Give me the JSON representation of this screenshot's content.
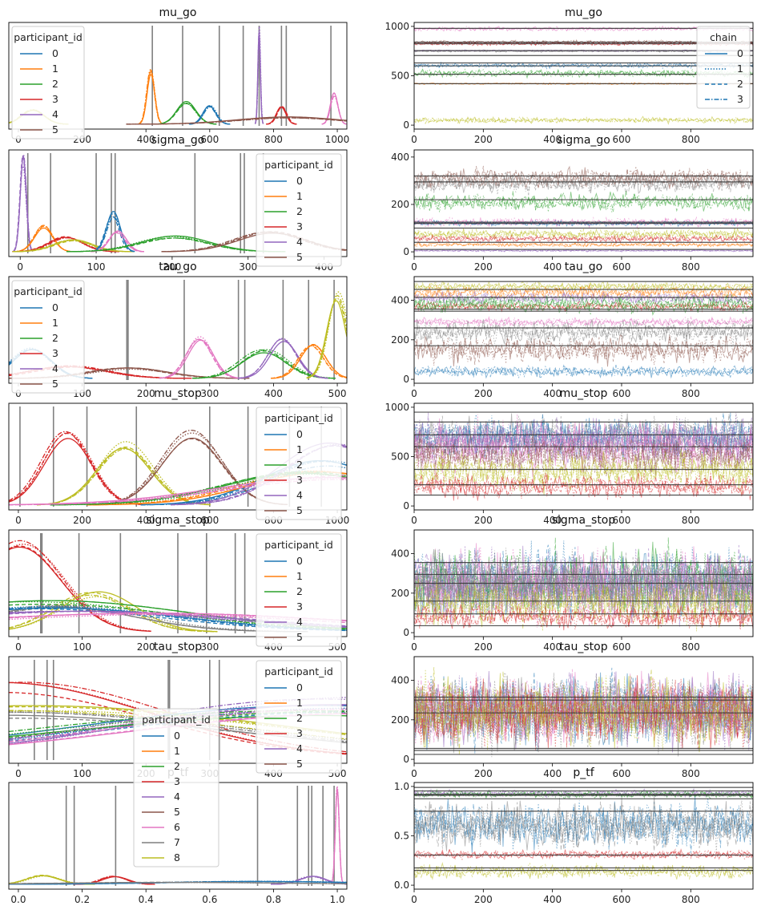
{
  "colors": {
    "participant": [
      "#1f77b4",
      "#ff7f0e",
      "#2ca02c",
      "#d62728",
      "#9467bd",
      "#8c564b",
      "#e377c2",
      "#7f7f7f",
      "#bcbd22"
    ],
    "vline": "#808080",
    "legend_border": "#cccccc"
  },
  "legend_participant": {
    "title": "participant_id",
    "labels": [
      "0",
      "1",
      "2",
      "3",
      "4",
      "5"
    ]
  },
  "legend_participant_full": {
    "title": "participant_id",
    "labels": [
      "0",
      "1",
      "2",
      "3",
      "4",
      "5",
      "6",
      "7",
      "8"
    ]
  },
  "legend_chain": {
    "title": "chain",
    "labels": [
      "0",
      "1",
      "2",
      "3"
    ],
    "line_styles": [
      "solid",
      "dotted",
      "dashed",
      "dashdot"
    ]
  },
  "chart_data": [
    {
      "type": "line",
      "kind": "density",
      "title": "mu_go",
      "xticks": [
        "0",
        "200",
        "400",
        "600",
        "800",
        "1000"
      ],
      "xlim": [
        -30,
        1030
      ],
      "legend": "top-left",
      "vlines": [
        420,
        515,
        630,
        705,
        755,
        825,
        840,
        980
      ],
      "series": [
        {
          "participant": 1,
          "center": 415,
          "width": 12,
          "height": 0.52
        },
        {
          "participant": 2,
          "center": 525,
          "width": 30,
          "height": 0.22
        },
        {
          "participant": 0,
          "center": 600,
          "width": 20,
          "height": 0.18
        },
        {
          "participant": 4,
          "center": 755,
          "width": 4,
          "height": 0.94
        },
        {
          "participant": 3,
          "center": 825,
          "width": 15,
          "height": 0.18
        },
        {
          "participant": 6,
          "center": 990,
          "width": 12,
          "height": 0.3
        },
        {
          "participant": 8,
          "center": 45,
          "width": 35,
          "height": 0.15
        },
        {
          "participant": 5,
          "center": 850,
          "width": 160,
          "height": 0.07
        }
      ]
    },
    {
      "type": "line",
      "kind": "trace",
      "title": "mu_go",
      "xticks": [
        "0",
        "200",
        "400",
        "600",
        "800"
      ],
      "yticks": [
        0,
        500,
        1000
      ],
      "ylim": [
        -40,
        1040
      ],
      "legend": "top-right",
      "hlines": [
        420,
        515,
        600,
        630,
        705,
        755,
        825,
        840,
        980
      ],
      "bands": [
        {
          "participant": 6,
          "center": 975,
          "spread": 30
        },
        {
          "participant": 5,
          "center": 840,
          "spread": 25
        },
        {
          "participant": 3,
          "center": 825,
          "spread": 25
        },
        {
          "participant": 7,
          "center": 750,
          "spread": 15
        },
        {
          "participant": 4,
          "center": 755,
          "spread": 10
        },
        {
          "participant": 0,
          "center": 605,
          "spread": 35
        },
        {
          "participant": 2,
          "center": 525,
          "spread": 50
        },
        {
          "participant": 1,
          "center": 420,
          "spread": 12
        },
        {
          "participant": 8,
          "center": 50,
          "spread": 40
        }
      ]
    },
    {
      "type": "line",
      "kind": "density",
      "title": "sigma_go",
      "xticks": [
        "0",
        "100",
        "200",
        "300",
        "400"
      ],
      "xlim": [
        -15,
        430
      ],
      "legend": "top-right",
      "vlines": [
        10,
        40,
        100,
        120,
        125,
        230,
        290,
        295,
        320
      ],
      "series": [
        {
          "participant": 4,
          "center": 4,
          "width": 4,
          "height": 0.94
        },
        {
          "participant": 1,
          "center": 30,
          "width": 12,
          "height": 0.26
        },
        {
          "participant": 3,
          "center": 60,
          "width": 22,
          "height": 0.15
        },
        {
          "participant": 8,
          "center": 70,
          "width": 25,
          "height": 0.12
        },
        {
          "participant": 0,
          "center": 122,
          "width": 9,
          "height": 0.38
        },
        {
          "participant": 6,
          "center": 128,
          "width": 11,
          "height": 0.2
        },
        {
          "participant": 2,
          "center": 205,
          "width": 45,
          "height": 0.15
        },
        {
          "participant": 5,
          "center": 330,
          "width": 45,
          "height": 0.2
        }
      ]
    },
    {
      "type": "line",
      "kind": "trace",
      "title": "sigma_go",
      "xticks": [
        "0",
        "200",
        "400",
        "600",
        "800"
      ],
      "yticks": [
        0,
        200,
        400
      ],
      "ylim": [
        -20,
        430
      ],
      "hlines": [
        10,
        40,
        100,
        120,
        125,
        220,
        295,
        320
      ],
      "bands": [
        {
          "participant": 5,
          "center": 310,
          "spread": 60
        },
        {
          "participant": 7,
          "center": 290,
          "spread": 55
        },
        {
          "participant": 2,
          "center": 210,
          "spread": 50
        },
        {
          "participant": 6,
          "center": 125,
          "spread": 25
        },
        {
          "participant": 0,
          "center": 120,
          "spread": 15
        },
        {
          "participant": 8,
          "center": 75,
          "spread": 30
        },
        {
          "participant": 3,
          "center": 55,
          "spread": 20
        },
        {
          "participant": 1,
          "center": 30,
          "spread": 12
        },
        {
          "participant": 4,
          "center": 5,
          "spread": 6
        }
      ]
    },
    {
      "type": "line",
      "kind": "density",
      "title": "tau_go",
      "xticks": [
        "0",
        "100",
        "200",
        "300",
        "400",
        "500"
      ],
      "xlim": [
        -15,
        515
      ],
      "legend": "top-left",
      "vlines": [
        170,
        172,
        260,
        345,
        355,
        415,
        455,
        495
      ],
      "series": [
        {
          "participant": 0,
          "center": 20,
          "width": 30,
          "height": 0.3
        },
        {
          "participant": 3,
          "center": 80,
          "width": 60,
          "height": 0.12
        },
        {
          "participant": 5,
          "center": 170,
          "width": 60,
          "height": 0.1
        },
        {
          "participant": 6,
          "center": 285,
          "width": 20,
          "height": 0.42
        },
        {
          "participant": 2,
          "center": 385,
          "width": 35,
          "height": 0.28
        },
        {
          "participant": 4,
          "center": 415,
          "width": 22,
          "height": 0.4
        },
        {
          "participant": 1,
          "center": 460,
          "width": 20,
          "height": 0.34
        },
        {
          "participant": 8,
          "center": 500,
          "width": 15,
          "height": 0.85
        }
      ]
    },
    {
      "type": "line",
      "kind": "trace",
      "title": "tau_go",
      "xticks": [
        "0",
        "200",
        "400",
        "600",
        "800"
      ],
      "yticks": [
        0,
        200,
        400
      ],
      "ylim": [
        -20,
        520
      ],
      "hlines": [
        170,
        260,
        345,
        355,
        415,
        455,
        495
      ],
      "bands": [
        {
          "participant": 8,
          "center": 470,
          "spread": 30
        },
        {
          "participant": 1,
          "center": 440,
          "spread": 45
        },
        {
          "participant": 4,
          "center": 410,
          "spread": 40
        },
        {
          "participant": 3,
          "center": 370,
          "spread": 30
        },
        {
          "participant": 2,
          "center": 380,
          "spread": 60
        },
        {
          "participant": 6,
          "center": 290,
          "spread": 30
        },
        {
          "participant": 7,
          "center": 240,
          "spread": 80
        },
        {
          "participant": 5,
          "center": 150,
          "spread": 90
        },
        {
          "participant": 0,
          "center": 40,
          "spread": 40
        }
      ]
    },
    {
      "type": "line",
      "kind": "density",
      "title": "mu_stop",
      "xticks": [
        "0",
        "200",
        "400",
        "600",
        "800",
        "1000"
      ],
      "xlim": [
        -30,
        1030
      ],
      "legend": "top-right",
      "vlines": [
        5,
        110,
        215,
        370,
        600,
        720,
        850,
        950
      ],
      "series": [
        {
          "participant": 3,
          "center": 150,
          "width": 75,
          "height": 0.72
        },
        {
          "participant": 8,
          "center": 330,
          "width": 85,
          "height": 0.6
        },
        {
          "participant": 5,
          "center": 540,
          "width": 95,
          "height": 0.72
        },
        {
          "participant": 0,
          "center": 960,
          "width": 180,
          "height": 0.42
        },
        {
          "participant": 1,
          "center": 950,
          "width": 230,
          "height": 0.36
        },
        {
          "participant": 2,
          "center": 900,
          "width": 250,
          "height": 0.32
        },
        {
          "participant": 4,
          "center": 990,
          "width": 160,
          "height": 0.6
        },
        {
          "participant": 6,
          "center": 1000,
          "width": 350,
          "height": 0.28
        }
      ]
    },
    {
      "type": "line",
      "kind": "trace",
      "title": "mu_stop",
      "xticks": [
        "0",
        "200",
        "400",
        "600",
        "800"
      ],
      "yticks": [
        0,
        500,
        1000
      ],
      "ylim": [
        -40,
        1040
      ],
      "hlines": [
        110,
        215,
        370,
        600,
        720,
        850,
        950
      ],
      "bands": [
        {
          "participant": 7,
          "center": 700,
          "spread": 280
        },
        {
          "participant": 0,
          "center": 700,
          "spread": 280
        },
        {
          "participant": 4,
          "center": 650,
          "spread": 330
        },
        {
          "participant": 6,
          "center": 600,
          "spread": 380
        },
        {
          "participant": 5,
          "center": 520,
          "spread": 250
        },
        {
          "participant": 8,
          "center": 350,
          "spread": 260
        },
        {
          "participant": 3,
          "center": 200,
          "spread": 170
        }
      ]
    },
    {
      "type": "line",
      "kind": "density",
      "title": "sigma_stop",
      "xticks": [
        "0",
        "100",
        "200",
        "300",
        "400",
        "500"
      ],
      "xlim": [
        -15,
        515
      ],
      "legend": "top-right",
      "vlines": [
        35,
        37,
        95,
        160,
        250,
        295,
        340,
        355
      ],
      "series": [
        {
          "participant": 3,
          "center": 0,
          "width": 65,
          "height": 0.9
        },
        {
          "participant": 8,
          "center": 120,
          "width": 60,
          "height": 0.38
        },
        {
          "participant": 7,
          "center": 70,
          "width": 120,
          "height": 0.26
        },
        {
          "participant": 0,
          "center": 50,
          "width": 200,
          "height": 0.24
        },
        {
          "participant": 2,
          "center": 30,
          "width": 220,
          "height": 0.3
        },
        {
          "participant": 4,
          "center": 100,
          "width": 250,
          "height": 0.2
        },
        {
          "participant": 6,
          "center": 200,
          "width": 300,
          "height": 0.18
        }
      ]
    },
    {
      "type": "line",
      "kind": "trace",
      "title": "sigma_stop",
      "xticks": [
        "0",
        "200",
        "400",
        "600",
        "800"
      ],
      "yticks": [
        0,
        200,
        400
      ],
      "ylim": [
        -20,
        520
      ],
      "hlines": [
        35,
        95,
        160,
        250,
        295,
        355
      ],
      "bands": [
        {
          "participant": 0,
          "center": 260,
          "spread": 230
        },
        {
          "participant": 2,
          "center": 260,
          "spread": 230
        },
        {
          "participant": 4,
          "center": 250,
          "spread": 240
        },
        {
          "participant": 6,
          "center": 240,
          "spread": 240
        },
        {
          "participant": 7,
          "center": 240,
          "spread": 230
        },
        {
          "participant": 8,
          "center": 150,
          "spread": 150
        },
        {
          "participant": 3,
          "center": 80,
          "spread": 80
        }
      ]
    },
    {
      "type": "line",
      "kind": "density",
      "title": "tau_stop",
      "xticks": [
        "0",
        "100",
        "200",
        "300",
        "400",
        "500"
      ],
      "xlim": [
        -15,
        515
      ],
      "legend": "top-right",
      "vlines": [
        25,
        45,
        55,
        235,
        237,
        300,
        315
      ],
      "series": [
        {
          "participant": 3,
          "center": 0,
          "width": 230,
          "height": 0.72
        },
        {
          "participant": 8,
          "center": 20,
          "width": 400,
          "height": 0.5
        },
        {
          "participant": 7,
          "center": 10,
          "width": 380,
          "height": 0.44
        },
        {
          "participant": 0,
          "center": 500,
          "width": 380,
          "height": 0.5
        },
        {
          "participant": 4,
          "center": 500,
          "width": 320,
          "height": 0.58
        },
        {
          "participant": 2,
          "center": 480,
          "width": 420,
          "height": 0.46
        },
        {
          "participant": 6,
          "center": 500,
          "width": 360,
          "height": 0.48
        }
      ]
    },
    {
      "type": "line",
      "kind": "trace",
      "title": "tau_stop",
      "xticks": [
        "0",
        "200",
        "400",
        "600",
        "800"
      ],
      "yticks": [
        0,
        200,
        400
      ],
      "ylim": [
        -20,
        520
      ],
      "hlines": [
        25,
        45,
        55,
        235,
        300,
        315
      ],
      "bands": [
        {
          "participant": 0,
          "center": 250,
          "spread": 240
        },
        {
          "participant": 4,
          "center": 250,
          "spread": 240
        },
        {
          "participant": 6,
          "center": 250,
          "spread": 240
        },
        {
          "participant": 7,
          "center": 240,
          "spread": 240
        },
        {
          "participant": 3,
          "center": 240,
          "spread": 240
        },
        {
          "participant": 8,
          "center": 240,
          "spread": 240
        }
      ]
    },
    {
      "type": "line",
      "kind": "density",
      "title": "p_tf",
      "xticks": [
        "0.0",
        "0.2",
        "0.4",
        "0.6",
        "0.8",
        "1.0"
      ],
      "xlim": [
        -0.03,
        1.03
      ],
      "legend": "top-center",
      "vlines": [
        0.15,
        0.175,
        0.305,
        0.75,
        0.875,
        0.91,
        0.92,
        0.955,
        0.99
      ],
      "series": [
        {
          "participant": 8,
          "center": 0.08,
          "width": 0.05,
          "height": 0.09
        },
        {
          "participant": 3,
          "center": 0.3,
          "width": 0.04,
          "height": 0.08
        },
        {
          "participant": 4,
          "center": 0.92,
          "width": 0.04,
          "height": 0.08
        },
        {
          "participant": 6,
          "center": 1.0,
          "width": 0.006,
          "height": 0.94
        },
        {
          "participant": 0,
          "center": 0.75,
          "width": 0.3,
          "height": 0.03
        },
        {
          "participant": 7,
          "center": 0.5,
          "width": 0.35,
          "height": 0.02
        }
      ]
    },
    {
      "type": "line",
      "kind": "trace",
      "title": "p_tf",
      "xticks": [
        "0",
        "200",
        "400",
        "600",
        "800"
      ],
      "yticks": [
        "0.0",
        "0.5",
        "1.0"
      ],
      "yvals": [
        0,
        0.5,
        1.0
      ],
      "ylim": [
        -0.04,
        1.04
      ],
      "hlines": [
        0.15,
        0.175,
        0.305,
        0.75,
        0.875,
        0.91,
        0.92,
        0.955,
        0.99
      ],
      "bands": [
        {
          "participant": 0,
          "center": 0.62,
          "spread": 0.32
        },
        {
          "participant": 7,
          "center": 0.6,
          "spread": 0.33
        },
        {
          "participant": 4,
          "center": 0.93,
          "spread": 0.05
        },
        {
          "participant": 2,
          "center": 0.92,
          "spread": 0.05
        },
        {
          "participant": 3,
          "center": 0.31,
          "spread": 0.06
        },
        {
          "participant": 8,
          "center": 0.14,
          "spread": 0.1
        }
      ]
    }
  ]
}
